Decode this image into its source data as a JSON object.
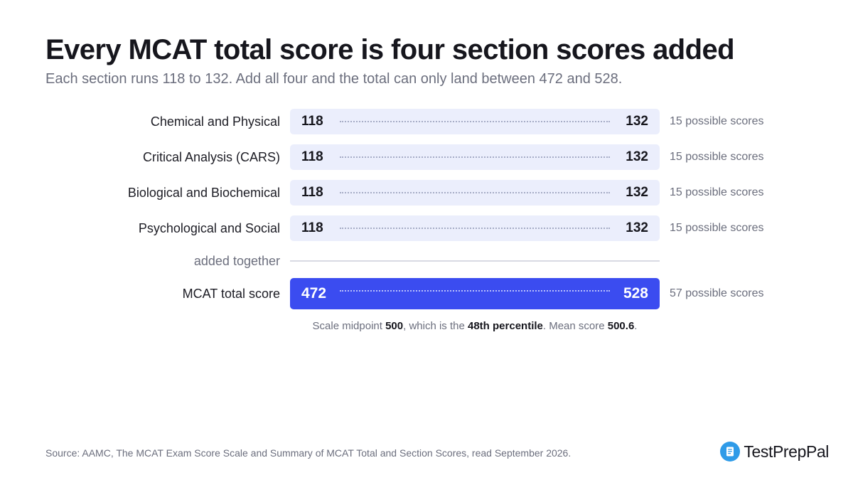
{
  "title": "Every MCAT total score is four section scores added",
  "subtitle": "Each section runs 118 to 132. Add all four and the total can only land between 472 and 528.",
  "sections": [
    {
      "label": "Chemical and Physical",
      "min": "118",
      "max": "132",
      "count_text": "15 possible scores"
    },
    {
      "label": "Critical Analysis (CARS)",
      "min": "118",
      "max": "132",
      "count_text": "15 possible scores"
    },
    {
      "label": "Biological and Biochemical",
      "min": "118",
      "max": "132",
      "count_text": "15 possible scores"
    },
    {
      "label": "Psychological and Social",
      "min": "118",
      "max": "132",
      "count_text": "15 possible scores"
    }
  ],
  "added_label": "added together",
  "total": {
    "label": "MCAT total score",
    "min": "472",
    "max": "528",
    "count_text": "57 possible scores"
  },
  "note": {
    "prefix": "Scale midpoint ",
    "midpoint": "500",
    "middle": ", which is the ",
    "percentile": "48th percentile",
    "mean_prefix": ". Mean score ",
    "mean": "500.6",
    "suffix": "."
  },
  "source": "Source: AAMC, The MCAT Exam Score Scale and Summary of MCAT Total and Section Scores, read September 2026.",
  "brand": {
    "name": "TestPrepPal",
    "icon": "document-icon"
  },
  "colors": {
    "section_bar": "#ebeefc",
    "total_bar": "#3b4cf0",
    "brand_icon": "#2f9be8",
    "muted_text": "#6b6e7d"
  }
}
